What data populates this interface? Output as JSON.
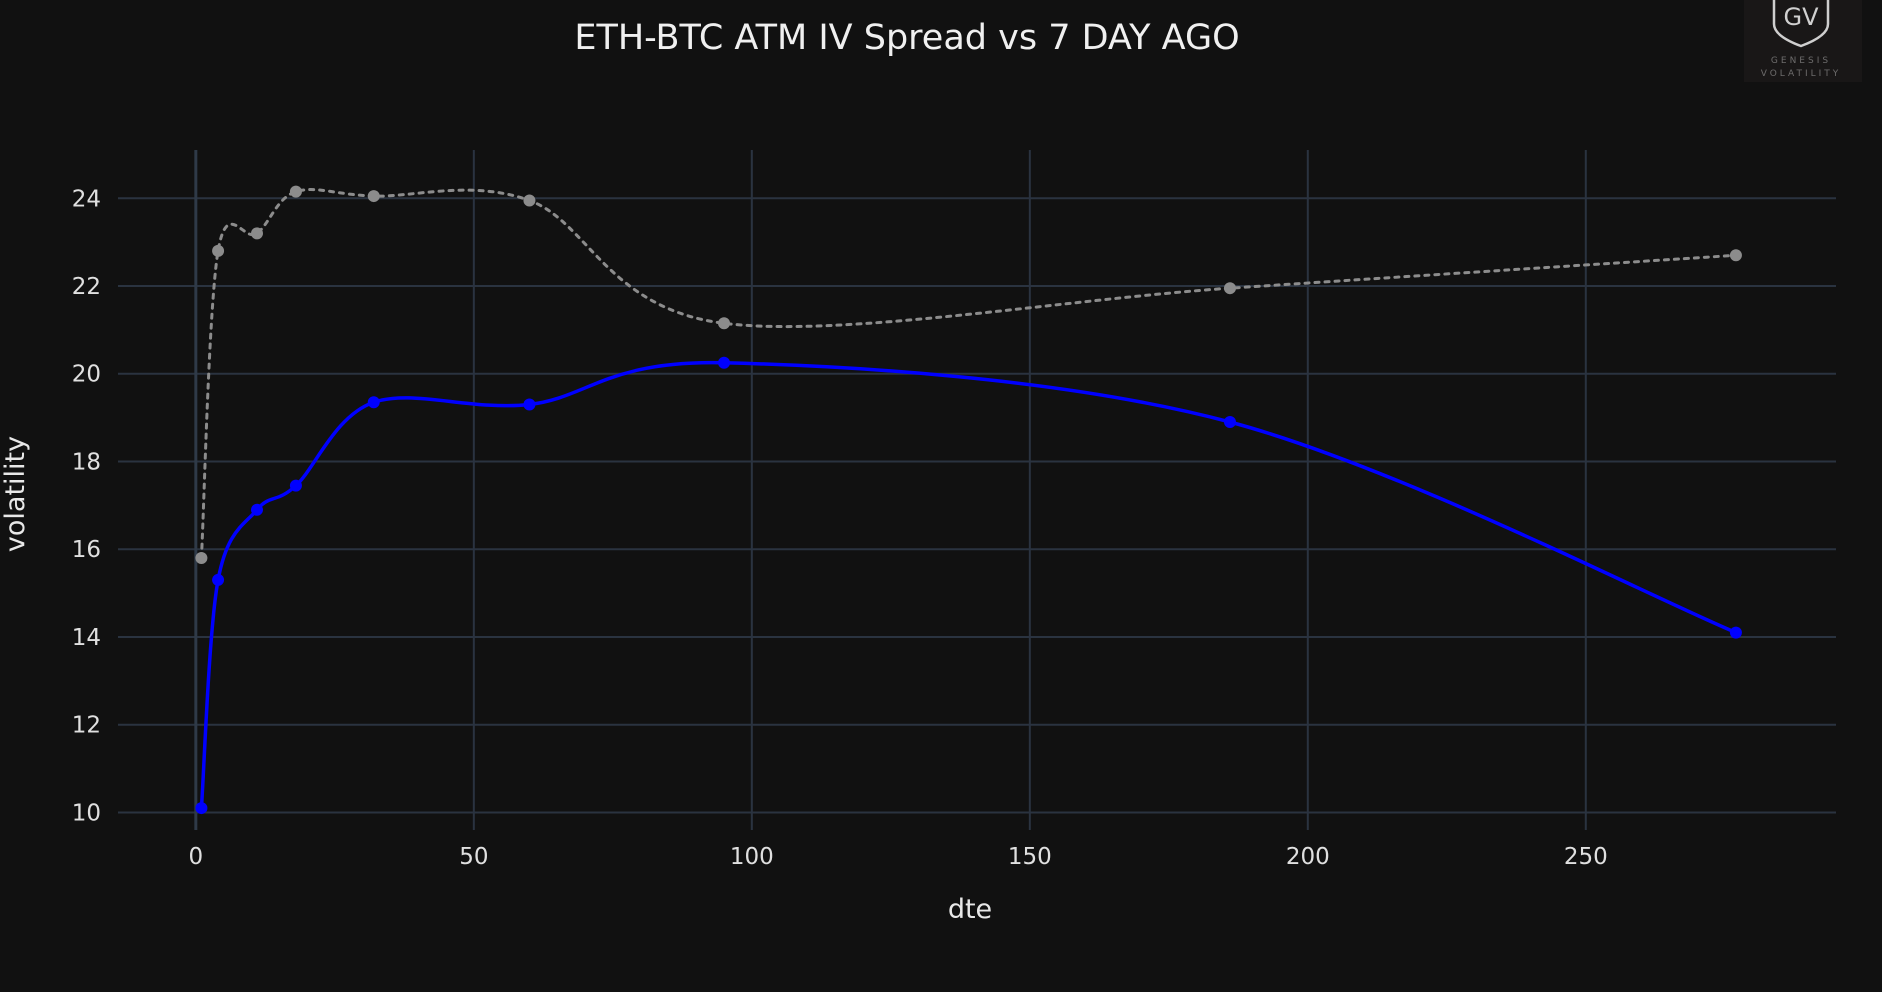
{
  "chart_data": {
    "type": "line",
    "title": "ETH-BTC ATM IV Spread vs 7 DAY AGO",
    "xlabel": "dte",
    "ylabel": "volatility",
    "xlim": [
      -14,
      295
    ],
    "ylim": [
      9.6,
      25.1
    ],
    "xticks": [
      0,
      50,
      100,
      150,
      200,
      250
    ],
    "yticks": [
      10,
      12,
      14,
      16,
      18,
      20,
      22,
      24
    ],
    "grid": true,
    "legend": "none",
    "series": [
      {
        "color": "#0000ff",
        "style": "solid",
        "x": [
          1,
          4,
          11,
          18,
          32,
          60,
          95,
          186,
          277
        ],
        "y": [
          10.1,
          15.3,
          16.9,
          17.45,
          19.35,
          19.3,
          20.25,
          18.9,
          14.1
        ]
      },
      {
        "color": "#8c8c8c",
        "style": "dotted",
        "x": [
          1,
          4,
          11,
          18,
          32,
          60,
          95,
          186,
          277
        ],
        "y": [
          15.8,
          22.8,
          23.2,
          24.15,
          24.05,
          23.95,
          21.15,
          21.95,
          22.7
        ]
      }
    ]
  },
  "logo": {
    "mark": "GV",
    "line1": "GENESIS",
    "line2": "VOLATILITY"
  }
}
